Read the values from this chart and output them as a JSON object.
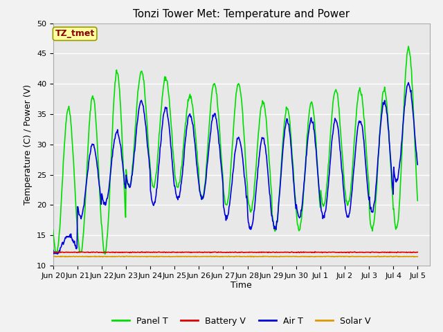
{
  "title": "Tonzi Tower Met: Temperature and Power",
  "xlabel": "Time",
  "ylabel": "Temperature (C) / Power (V)",
  "ylim": [
    10,
    50
  ],
  "annotation_text": "TZ_tmet",
  "annotation_color": "#8B0000",
  "annotation_bg": "#FFFFA0",
  "annotation_edge": "#999900",
  "bg_color": "#E8E8E8",
  "fig_bg_color": "#F2F2F2",
  "grid_color": "#FFFFFF",
  "tick_labels": [
    "Jun 20",
    "Jun 21",
    "Jun 22",
    "Jun 23",
    "Jun 24",
    "Jun 25",
    "Jun 26",
    "Jun 27",
    "Jun 28",
    "Jun 29",
    "Jun 30",
    "Jul 1",
    "Jul 2",
    "Jul 3",
    "Jul 4",
    "Jul 5"
  ],
  "panel_t_color": "#00DD00",
  "battery_v_color": "#DD0000",
  "air_t_color": "#0000DD",
  "solar_v_color": "#DD9900",
  "line_width": 1.2,
  "battery_v_value": 12.2,
  "solar_v_value": 11.5,
  "panel_lo": [
    12,
    12,
    12,
    23,
    23,
    23,
    21,
    20,
    19,
    16,
    16,
    20,
    20,
    16,
    16
  ],
  "panel_hi": [
    36,
    38,
    42,
    42,
    41,
    38,
    40,
    40,
    37,
    36,
    37,
    39,
    39,
    39,
    46
  ],
  "air_lo": [
    12,
    18,
    20,
    23,
    20,
    21,
    21,
    18,
    16,
    16,
    18,
    18,
    18,
    19,
    24
  ],
  "air_hi": [
    15,
    30,
    32,
    37,
    36,
    35,
    35,
    31,
    31,
    34,
    34,
    34,
    34,
    37,
    40
  ],
  "yticks": [
    10,
    15,
    20,
    25,
    30,
    35,
    40,
    45,
    50
  ],
  "title_fontsize": 11,
  "axis_label_fontsize": 9,
  "tick_fontsize": 8
}
